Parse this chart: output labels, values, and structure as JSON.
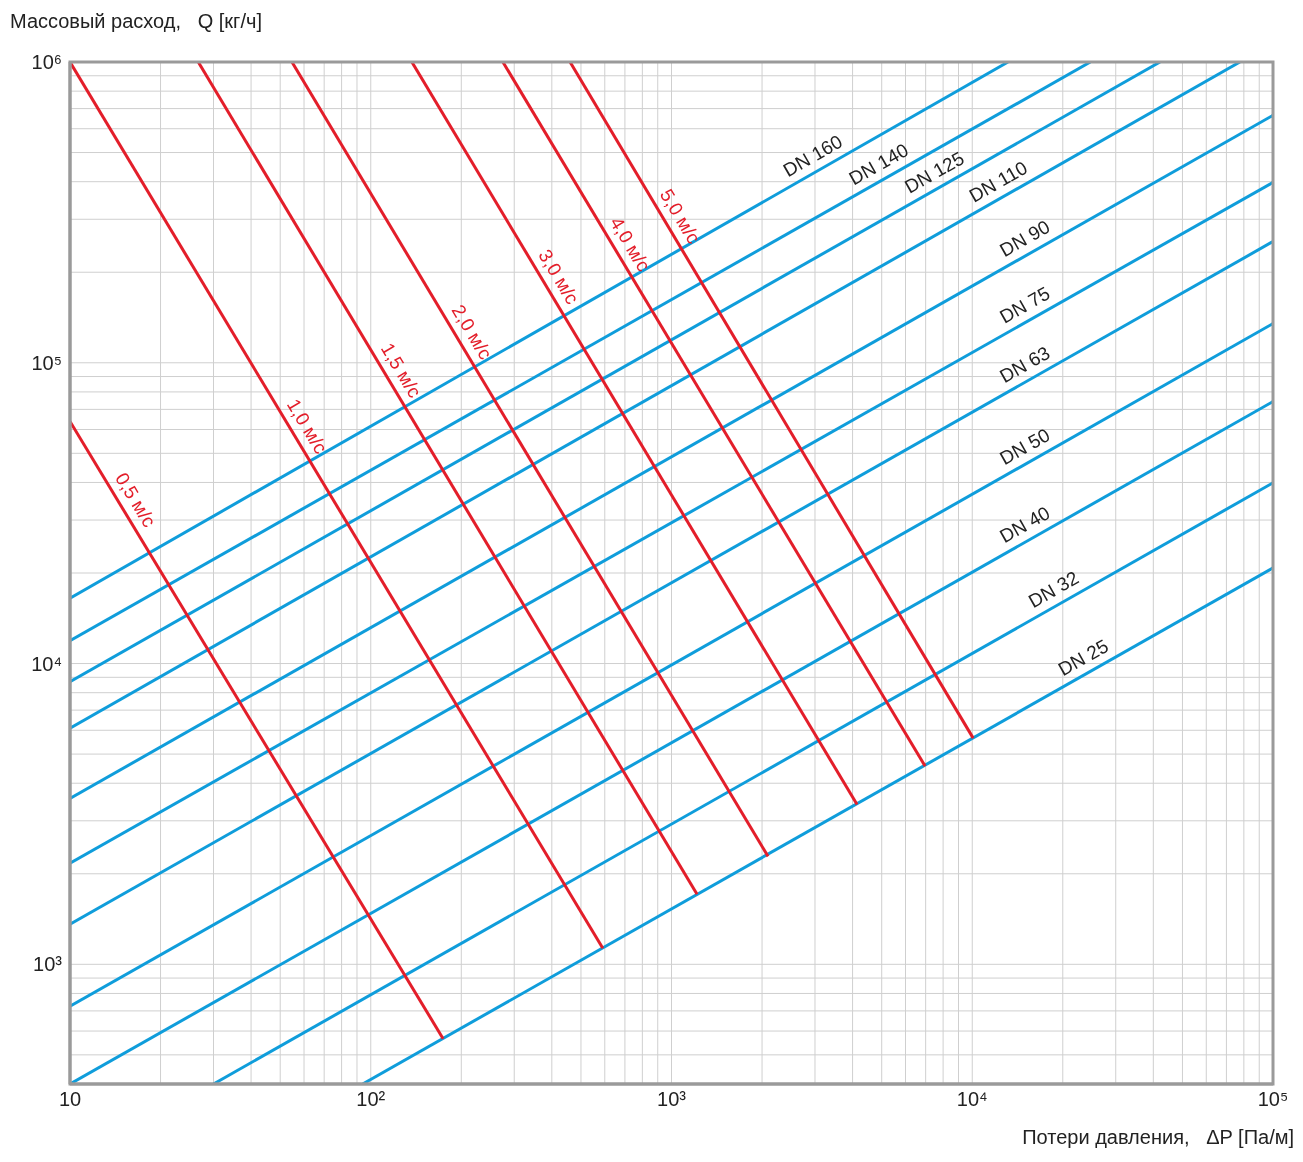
{
  "chart_data": {
    "type": "line",
    "xlabel": "Потери давления,   ΔP [Па/м]",
    "ylabel": "Массовый расход,   Q [кг/ч]",
    "log": "xy",
    "grid": true,
    "marker": "none",
    "line_style": "solid",
    "xlim": [
      10,
      100000
    ],
    "ylim": [
      400,
      1000000
    ],
    "xticks": [
      {
        "value": 10,
        "label": "10"
      },
      {
        "value": 20,
        "label": null
      },
      {
        "value": 30,
        "label": null
      },
      {
        "value": 40,
        "label": null
      },
      {
        "value": 50,
        "label": null
      },
      {
        "value": 60,
        "label": null
      },
      {
        "value": 70,
        "label": null
      },
      {
        "value": 80,
        "label": null
      },
      {
        "value": 90,
        "label": null
      },
      {
        "value": 100,
        "label": "10²"
      },
      {
        "value": 200,
        "label": null
      },
      {
        "value": 300,
        "label": null
      },
      {
        "value": 400,
        "label": null
      },
      {
        "value": 500,
        "label": null
      },
      {
        "value": 600,
        "label": null
      },
      {
        "value": 700,
        "label": null
      },
      {
        "value": 800,
        "label": null
      },
      {
        "value": 900,
        "label": null
      },
      {
        "value": 1000,
        "label": "10³"
      },
      {
        "value": 2000,
        "label": null
      },
      {
        "value": 3000,
        "label": null
      },
      {
        "value": 4000,
        "label": null
      },
      {
        "value": 5000,
        "label": null
      },
      {
        "value": 6000,
        "label": null
      },
      {
        "value": 7000,
        "label": null
      },
      {
        "value": 8000,
        "label": null
      },
      {
        "value": 9000,
        "label": null
      },
      {
        "value": 10000,
        "label": "10⁴"
      },
      {
        "value": 20000,
        "label": null
      },
      {
        "value": 30000,
        "label": null
      },
      {
        "value": 40000,
        "label": null
      },
      {
        "value": 50000,
        "label": null
      },
      {
        "value": 60000,
        "label": null
      },
      {
        "value": 70000,
        "label": null
      },
      {
        "value": 80000,
        "label": null
      },
      {
        "value": 90000,
        "label": null
      },
      {
        "value": 100000,
        "label": "10⁵"
      }
    ],
    "yticks": [
      {
        "value": 400,
        "label": null
      },
      {
        "value": 500,
        "label": null
      },
      {
        "value": 600,
        "label": null
      },
      {
        "value": 700,
        "label": null
      },
      {
        "value": 800,
        "label": null
      },
      {
        "value": 900,
        "label": null
      },
      {
        "value": 1000,
        "label": "10³"
      },
      {
        "value": 2000,
        "label": null
      },
      {
        "value": 3000,
        "label": null
      },
      {
        "value": 4000,
        "label": null
      },
      {
        "value": 5000,
        "label": null
      },
      {
        "value": 6000,
        "label": null
      },
      {
        "value": 7000,
        "label": null
      },
      {
        "value": 8000,
        "label": null
      },
      {
        "value": 9000,
        "label": null
      },
      {
        "value": 10000,
        "label": "10⁴"
      },
      {
        "value": 20000,
        "label": null
      },
      {
        "value": 30000,
        "label": null
      },
      {
        "value": 40000,
        "label": null
      },
      {
        "value": 50000,
        "label": null
      },
      {
        "value": 60000,
        "label": null
      },
      {
        "value": 70000,
        "label": null
      },
      {
        "value": 80000,
        "label": null
      },
      {
        "value": 90000,
        "label": null
      },
      {
        "value": 100000,
        "label": "10⁵"
      },
      {
        "value": 200000,
        "label": null
      },
      {
        "value": 300000,
        "label": null
      },
      {
        "value": 400000,
        "label": null
      },
      {
        "value": 500000,
        "label": null
      },
      {
        "value": 600000,
        "label": null
      },
      {
        "value": 700000,
        "label": null
      },
      {
        "value": 800000,
        "label": null
      },
      {
        "value": 900000,
        "label": null
      },
      {
        "value": 1000000,
        "label": "10⁶"
      }
    ],
    "series": [
      {
        "name": "DN 160",
        "color": "#0f9ddb",
        "x": [
          10,
          13150
        ],
        "values": [
          16500,
          1000000
        ]
      },
      {
        "name": "DN 140",
        "color": "#0f9ddb",
        "x": [
          10,
          24700
        ],
        "values": [
          11900,
          1000000
        ]
      },
      {
        "name": "DN 125",
        "color": "#0f9ddb",
        "x": [
          10,
          42100
        ],
        "values": [
          8700,
          1000000
        ]
      },
      {
        "name": "DN 110",
        "color": "#0f9ddb",
        "x": [
          10,
          77600
        ],
        "values": [
          6100,
          1000000
        ]
      },
      {
        "name": "DN 90",
        "color": "#0f9ddb",
        "x": [
          10,
          100000
        ],
        "values": [
          3560,
          665000
        ]
      },
      {
        "name": "DN 75",
        "color": "#0f9ddb",
        "x": [
          10,
          100000
        ],
        "values": [
          2170,
          398000
        ]
      },
      {
        "name": "DN 63",
        "color": "#0f9ddb",
        "x": [
          10,
          100000
        ],
        "values": [
          1360,
          253000
        ]
      },
      {
        "name": "DN 50",
        "color": "#0f9ddb",
        "x": [
          10,
          100000
        ],
        "values": [
          725,
          135000
        ]
      },
      {
        "name": "DN 40",
        "color": "#0f9ddb",
        "x": [
          10,
          100000
        ],
        "values": [
          400,
          74300
        ]
      },
      {
        "name": "DN 32",
        "color": "#0f9ddb",
        "x": [
          30,
          100000
        ],
        "values": [
          400,
          39900
        ]
      },
      {
        "name": "DN 25",
        "color": "#0f9ddb",
        "x": [
          94,
          100000
        ],
        "values": [
          400,
          20800
        ]
      },
      {
        "name": "0,5 м/с",
        "color": "#e31e2a",
        "x": [
          10,
          174
        ],
        "values": [
          63800,
          566
        ]
      },
      {
        "name": "1,0 м/с",
        "color": "#e31e2a",
        "x": [
          10,
          591
        ],
        "values": [
          1000000,
          1130
        ]
      },
      {
        "name": "1,5 м/с",
        "color": "#e31e2a",
        "x": [
          26.7,
          1216
        ],
        "values": [
          1000000,
          1710
        ]
      },
      {
        "name": "2,0 м/с",
        "color": "#e31e2a",
        "x": [
          54.7,
          2094
        ],
        "values": [
          1000000,
          2285
        ]
      },
      {
        "name": "3,0 м/с",
        "color": "#e31e2a",
        "x": [
          137,
          4140
        ],
        "values": [
          1000000,
          3400
        ]
      },
      {
        "name": "4,0 м/с",
        "color": "#e31e2a",
        "x": [
          275,
          6970
        ],
        "values": [
          1000000,
          4560
        ]
      },
      {
        "name": "5,0 м/с",
        "color": "#e31e2a",
        "x": [
          460,
          10070
        ],
        "values": [
          1000000,
          5650
        ]
      }
    ]
  }
}
